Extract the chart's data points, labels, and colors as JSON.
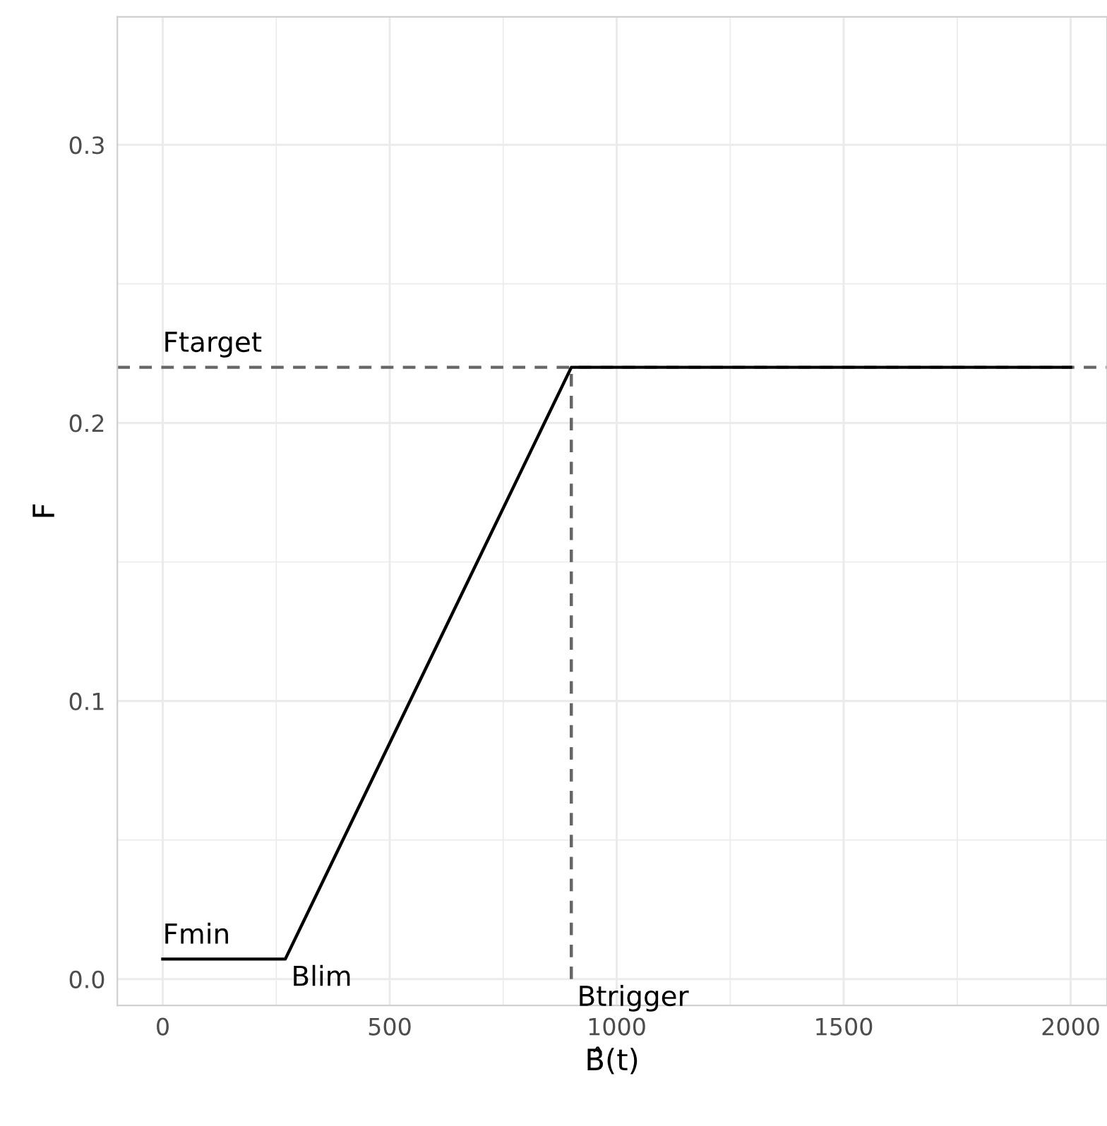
{
  "chart_data": {
    "type": "line",
    "xlabel": "B̂(t)",
    "ylabel": "F",
    "series": [
      {
        "color": "#000000",
        "x": [
          0,
          270,
          900,
          2000
        ],
        "values": [
          0.0072,
          0.0072,
          0.22,
          0.22
        ]
      },
      {
        "color": "#666666",
        "line_style": "dashed",
        "x": [
          900,
          900
        ],
        "values": [
          0,
          0.22
        ]
      }
    ],
    "ref_lines": [
      {
        "axis": "y",
        "value": 0.22,
        "color": "#666666",
        "line_style": "dashed"
      }
    ],
    "annotations": [
      {
        "text": "Ftarget",
        "x": 0,
        "y": 0.22
      },
      {
        "text": "Fmin",
        "x": 0,
        "y": 0.0072
      },
      {
        "text": "Blim",
        "x": 270,
        "y": 0.0072
      },
      {
        "text": "Btrigger",
        "x": 900,
        "y": 0
      }
    ],
    "xlim": [
      -100,
      2080
    ],
    "ylim": [
      -0.0095,
      0.346
    ],
    "xticks": [
      0,
      {
        "value": 250,
        "label": null
      },
      500,
      {
        "value": 750,
        "label": null
      },
      1000,
      {
        "value": 1250,
        "label": null
      },
      1500,
      {
        "value": 1750,
        "label": null
      },
      2000
    ],
    "yticks": [
      {
        "value": 0,
        "label": "0.0"
      },
      {
        "value": 0.05,
        "label": null
      },
      0.1,
      {
        "value": 0.15,
        "label": null
      },
      0.2,
      {
        "value": 0.25,
        "label": null
      },
      0.3
    ],
    "grid": true,
    "marker": "none",
    "line_style": "solid"
  }
}
